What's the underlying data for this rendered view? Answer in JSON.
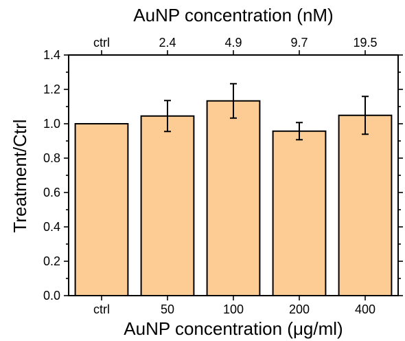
{
  "chart_data": {
    "type": "bar",
    "categories": [
      "ctrl",
      "50",
      "100",
      "200",
      "400"
    ],
    "top_categories": [
      "ctrl",
      "2.4",
      "4.9",
      "9.7",
      "19.5"
    ],
    "values": [
      1.0,
      1.045,
      1.133,
      0.957,
      1.049
    ],
    "errors": [
      0,
      0.09,
      0.1,
      0.05,
      0.11
    ],
    "xlabel": "AuNP concentration (μg/ml)",
    "x2label": "AuNP concentration (nM)",
    "ylabel": "Treatment/Ctrl",
    "ylim": [
      0,
      1.4
    ],
    "yticks": [
      "0.0",
      "0.2",
      "0.4",
      "0.6",
      "0.8",
      "1.0",
      "1.2",
      "1.4"
    ],
    "bar_color": "#fdcc94",
    "grid": false,
    "legend": "none"
  }
}
